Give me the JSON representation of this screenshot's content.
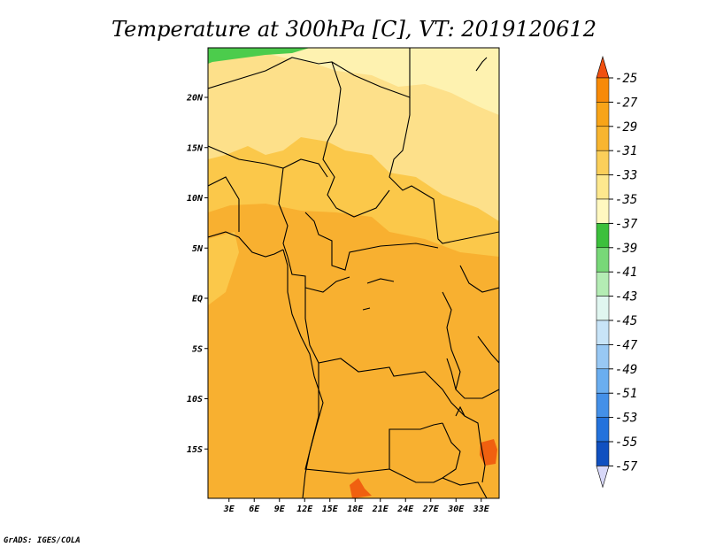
{
  "title": "Temperature at 300hPa [C], VT: 2019120612",
  "credit": "GrADS: IGES/COLA",
  "map": {
    "lat_labels": [
      {
        "lat": 20,
        "label": "20N"
      },
      {
        "lat": 15,
        "label": "15N"
      },
      {
        "lat": 10,
        "label": "10N"
      },
      {
        "lat": 5,
        "label": "5N"
      },
      {
        "lat": 0,
        "label": "EQ"
      },
      {
        "lat": -5,
        "label": "5S"
      },
      {
        "lat": -10,
        "label": "10S"
      },
      {
        "lat": -15,
        "label": "15S"
      }
    ],
    "lon_labels": [
      {
        "lon": 3,
        "label": "3E"
      },
      {
        "lon": 6,
        "label": "6E"
      },
      {
        "lon": 9,
        "label": "9E"
      },
      {
        "lon": 12,
        "label": "12E"
      },
      {
        "lon": 15,
        "label": "15E"
      },
      {
        "lon": 18,
        "label": "18E"
      },
      {
        "lon": 21,
        "label": "21E"
      },
      {
        "lon": 24,
        "label": "24E"
      },
      {
        "lon": 27,
        "label": "27E"
      },
      {
        "lon": 30,
        "label": "30E"
      },
      {
        "lon": 33,
        "label": "33E"
      }
    ],
    "field_colors": {
      "warmest": "#f06010",
      "warm": "#f8b030",
      "mid": "#fbc84a",
      "light": "#fde08a",
      "pale": "#fef2b0",
      "green": "#4ccc4c"
    }
  },
  "colorbar": {
    "labels": [
      "-25",
      "-27",
      "-29",
      "-31",
      "-33",
      "-35",
      "-37",
      "-39",
      "-41",
      "-43",
      "-45",
      "-47",
      "-49",
      "-51",
      "-53",
      "-55",
      "-57"
    ],
    "colors": [
      "#f05010",
      "#f88a08",
      "#f8a418",
      "#f8b530",
      "#fbcf5a",
      "#fde88e",
      "#fff8c0",
      "#3cc03c",
      "#78d878",
      "#b4ecb4",
      "#e0f6f0",
      "#c8e4f8",
      "#98c8f4",
      "#6aaef0",
      "#4490e8",
      "#2472dc",
      "#1050c0",
      "#0a30a0",
      "#060878",
      "#d8d8f8"
    ]
  }
}
